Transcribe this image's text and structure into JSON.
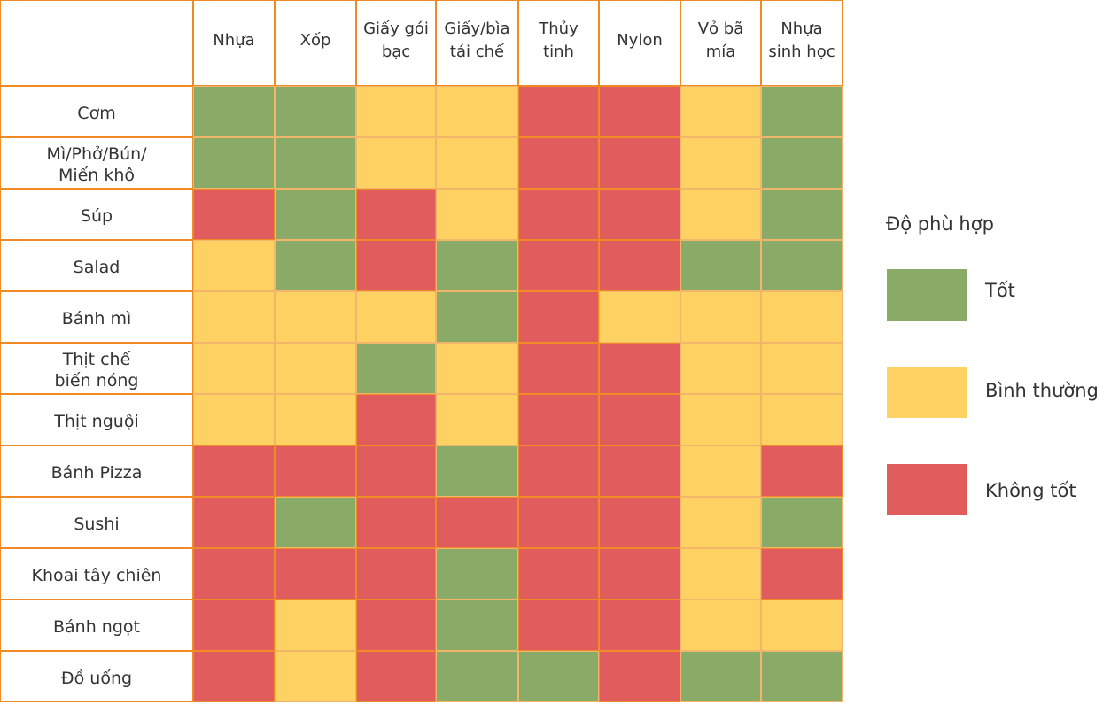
{
  "chart_data": {
    "type": "heatmap",
    "columns": [
      "Nhựa",
      "Xốp",
      "Giấy gói\nbạc",
      "Giấy/bìa\ntái chế",
      "Thủy\ntinh",
      "Nylon",
      "Vỏ bã\nmía",
      "Nhựa\nsinh học"
    ],
    "rows": [
      {
        "label": "Cơm",
        "values": [
          "good",
          "good",
          "normal",
          "normal",
          "bad",
          "bad",
          "normal",
          "good"
        ]
      },
      {
        "label": "Mì/Phở/Bún/\nMiến khô",
        "values": [
          "good",
          "good",
          "normal",
          "normal",
          "bad",
          "bad",
          "normal",
          "good"
        ]
      },
      {
        "label": "Súp",
        "values": [
          "bad",
          "good",
          "bad",
          "normal",
          "bad",
          "bad",
          "normal",
          "good"
        ]
      },
      {
        "label": "Salad",
        "values": [
          "normal",
          "good",
          "bad",
          "good",
          "bad",
          "bad",
          "good",
          "good"
        ]
      },
      {
        "label": "Bánh mì",
        "values": [
          "normal",
          "normal",
          "normal",
          "good",
          "bad",
          "normal",
          "normal",
          "normal"
        ]
      },
      {
        "label": "Thịt chế\nbiến nóng",
        "values": [
          "normal",
          "normal",
          "good",
          "normal",
          "bad",
          "bad",
          "normal",
          "normal"
        ]
      },
      {
        "label": "Thịt nguội",
        "values": [
          "normal",
          "normal",
          "bad",
          "normal",
          "bad",
          "bad",
          "normal",
          "normal"
        ]
      },
      {
        "label": "Bánh Pizza",
        "values": [
          "bad",
          "bad",
          "bad",
          "good",
          "bad",
          "bad",
          "normal",
          "bad"
        ]
      },
      {
        "label": "Sushi",
        "values": [
          "bad",
          "good",
          "bad",
          "bad",
          "bad",
          "bad",
          "normal",
          "good"
        ]
      },
      {
        "label": "Khoai tây chiên",
        "values": [
          "bad",
          "bad",
          "bad",
          "good",
          "bad",
          "bad",
          "normal",
          "bad"
        ]
      },
      {
        "label": "Bánh ngọt",
        "values": [
          "bad",
          "normal",
          "bad",
          "good",
          "bad",
          "bad",
          "normal",
          "normal"
        ]
      },
      {
        "label": "Đồ uống",
        "values": [
          "bad",
          "normal",
          "bad",
          "good",
          "good",
          "bad",
          "good",
          "good"
        ]
      }
    ],
    "legend": {
      "title": "Độ phù hợp",
      "placement": "right",
      "items": [
        {
          "key": "good",
          "label": "Tốt",
          "color": "#8AAA67"
        },
        {
          "key": "normal",
          "label": "Bình thường",
          "color": "#FDD263"
        },
        {
          "key": "bad",
          "label": "Không tốt",
          "color": "#E15D5D"
        }
      ]
    },
    "grid_line_color": "#F08A24"
  }
}
